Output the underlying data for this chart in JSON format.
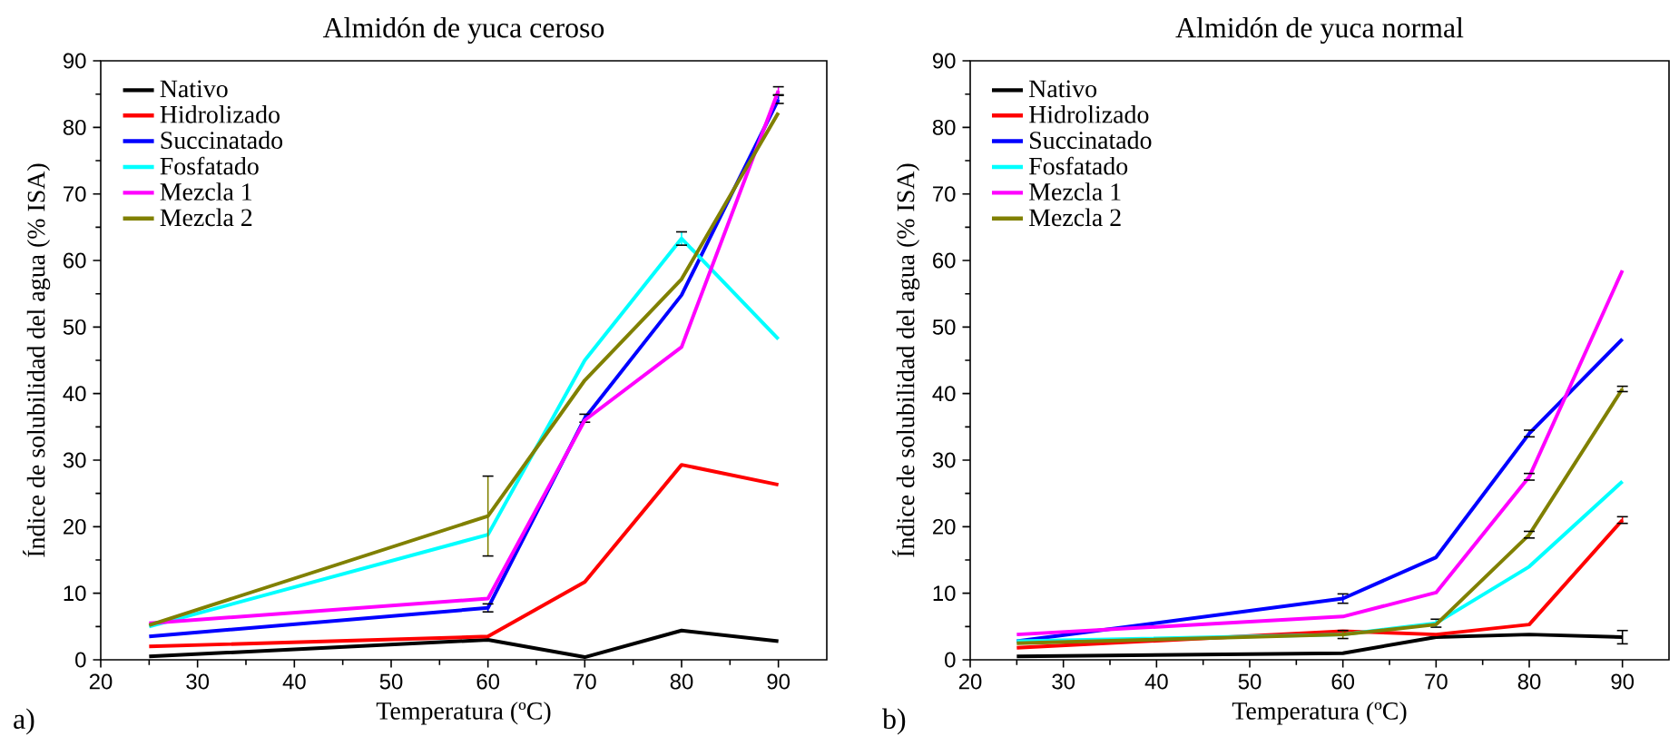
{
  "chart_data": [
    {
      "type": "line",
      "title": "Almidón de yuca ceroso",
      "xlabel": "Temperatura (ºC)",
      "ylabel": "Índice de solubilidad del agua (% ISA)",
      "annotations": [
        "a)"
      ],
      "legend": "top left",
      "marker": "none",
      "x": [
        25,
        60,
        70,
        80,
        90
      ],
      "xlim": [
        20,
        95
      ],
      "xticks": [
        20,
        30,
        40,
        50,
        60,
        70,
        80,
        90
      ],
      "ylim": [
        0,
        90
      ],
      "yticks": [
        0,
        10,
        20,
        30,
        40,
        50,
        60,
        70,
        80,
        90
      ],
      "series": [
        {
          "name": "Nativo",
          "color": "#000000",
          "values": [
            0.5,
            3,
            0.4,
            4.4,
            2.8
          ]
        },
        {
          "name": "Hidrolizado",
          "color": "#ff0000",
          "values": [
            2,
            3.5,
            11.7,
            29.3,
            26.3
          ]
        },
        {
          "name": "Succinatado",
          "color": "#0000ff",
          "values": [
            3.5,
            7.8,
            36.3,
            54.8,
            84.2
          ],
          "errors": [
            null,
            0.6,
            0.6,
            null,
            0.6
          ]
        },
        {
          "name": "Fosfatado",
          "color": "#00ffff",
          "values": [
            5,
            18.8,
            45,
            63.3,
            48.2
          ],
          "errors": [
            null,
            null,
            null,
            1,
            null
          ]
        },
        {
          "name": "Mezcla 1",
          "color": "#ff00ff",
          "values": [
            5.5,
            9.2,
            36,
            47,
            85.5
          ],
          "errors": [
            null,
            null,
            null,
            null,
            0.6
          ]
        },
        {
          "name": "Mezcla 2",
          "color": "#808000",
          "values": [
            5.2,
            21.6,
            42,
            57.2,
            82.2
          ],
          "errors": [
            null,
            6,
            null,
            null,
            null
          ]
        }
      ]
    },
    {
      "type": "line",
      "title": "Almidón de yuca normal",
      "xlabel": "Temperatura (ºC)",
      "ylabel": "Índice de solubilidad del agua (% ISA)",
      "annotations": [
        "b)"
      ],
      "legend": "top left",
      "marker": "none",
      "x": [
        25,
        60,
        70,
        80,
        90
      ],
      "xlim": [
        20,
        95
      ],
      "xticks": [
        20,
        30,
        40,
        50,
        60,
        70,
        80,
        90
      ],
      "ylim": [
        0,
        90
      ],
      "yticks": [
        0,
        10,
        20,
        30,
        40,
        50,
        60,
        70,
        80,
        90
      ],
      "series": [
        {
          "name": "Nativo",
          "color": "#000000",
          "values": [
            0.5,
            1,
            3.4,
            3.8,
            3.4
          ],
          "errors": [
            null,
            null,
            null,
            null,
            1
          ]
        },
        {
          "name": "Hidrolizado",
          "color": "#ff0000",
          "values": [
            1.8,
            4.3,
            3.8,
            5.3,
            21
          ],
          "errors": [
            null,
            null,
            null,
            null,
            0.5
          ]
        },
        {
          "name": "Succinatado",
          "color": "#0000ff",
          "values": [
            2.8,
            9.2,
            15.4,
            34,
            48.2
          ],
          "errors": [
            null,
            0.7,
            null,
            0.5,
            null
          ]
        },
        {
          "name": "Fosfatado",
          "color": "#00ffff",
          "values": [
            2.8,
            3.8,
            5.5,
            14,
            26.8
          ],
          "errors": [
            null,
            null,
            0.6,
            null,
            null
          ]
        },
        {
          "name": "Mezcla 1",
          "color": "#ff00ff",
          "values": [
            3.8,
            6.5,
            10.1,
            27.5,
            58.5
          ],
          "errors": [
            null,
            null,
            null,
            0.5,
            null
          ]
        },
        {
          "name": "Mezcla 2",
          "color": "#808000",
          "values": [
            2.5,
            3.8,
            5.3,
            18.8,
            40.7
          ],
          "errors": [
            null,
            0.6,
            null,
            0.5,
            0.4
          ]
        }
      ]
    }
  ]
}
